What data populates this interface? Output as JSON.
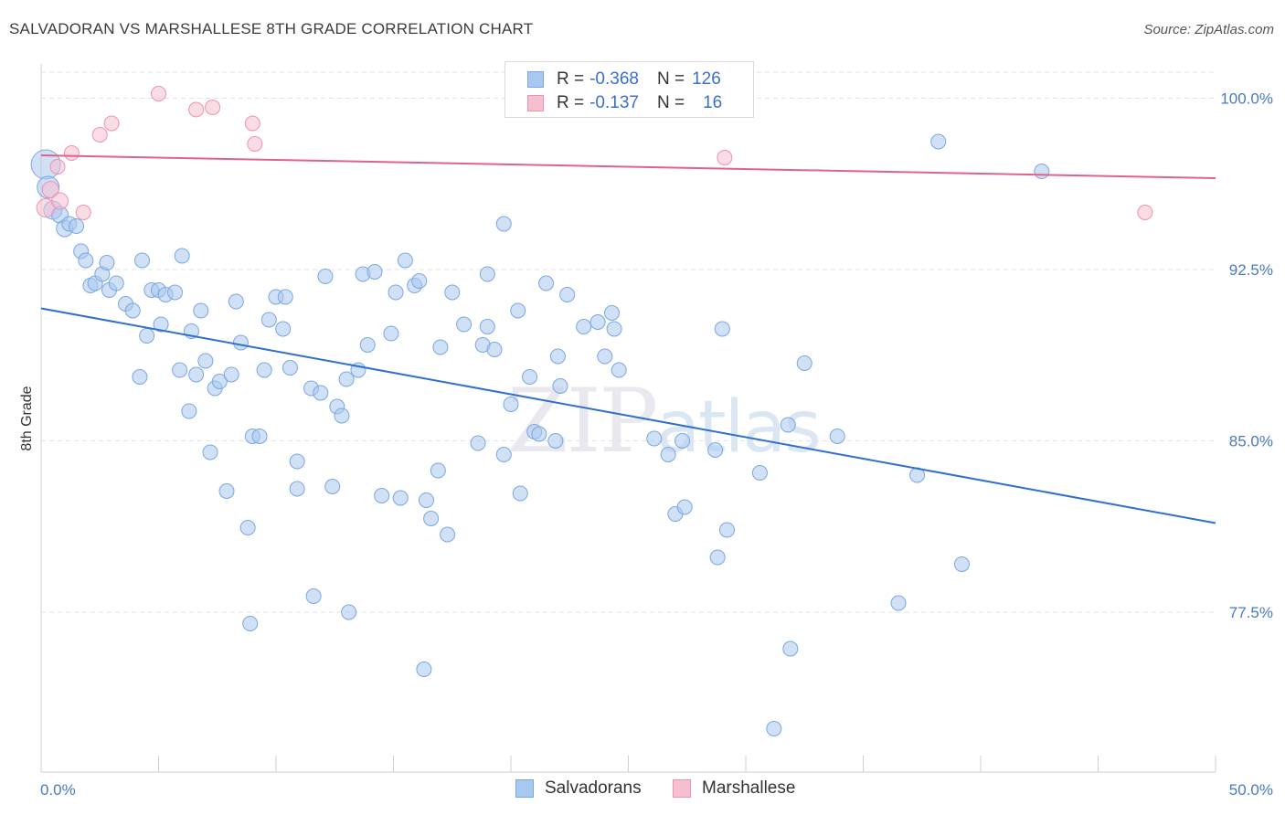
{
  "title": "SALVADORAN VS MARSHALLESE 8TH GRADE CORRELATION CHART",
  "source": "Source: ZipAtlas.com",
  "watermark": {
    "zip": "ZIP",
    "atlas": "atlas"
  },
  "colors": {
    "blue_fill": "#a9c8ef",
    "blue_stroke": "#7aa7e3",
    "blue_line": "#2f6fd0",
    "pink_fill": "#f6bfd0",
    "pink_stroke": "#ee92b0",
    "pink_line": "#e0628c",
    "grid": "#e3e3e3",
    "tick_text": "#4a78c8"
  },
  "legend": {
    "rows": [
      {
        "r_label": "R =",
        "r_value": "-0.368",
        "n_label": "N =",
        "n_value": "126"
      },
      {
        "r_label": "R =",
        "r_value": "-0.137",
        "n_label": "N =",
        "n_value": "16"
      }
    ]
  },
  "bottom_legend": {
    "salvadorans": "Salvadorans",
    "marshallese": "Marshallese"
  },
  "chart_data": {
    "type": "scatter",
    "title": "SALVADORAN VS MARSHALLESE 8TH GRADE CORRELATION CHART",
    "xlabel": "",
    "ylabel": "8th Grade",
    "xlim": [
      0,
      50
    ],
    "ylim": [
      70.5,
      101.5
    ],
    "x_tick_labels": [
      "0.0%",
      "50.0%"
    ],
    "y_ticks": [
      77.5,
      85.0,
      92.5,
      100.0
    ],
    "y_tick_labels": [
      "77.5%",
      "85.0%",
      "92.5%",
      "100.0%"
    ],
    "grid": true,
    "legend_position": "top-center",
    "series": [
      {
        "name": "Salvadorans",
        "trend": {
          "x": [
            0,
            50
          ],
          "y": [
            90.8,
            81.4
          ]
        },
        "points": [
          [
            0.2,
            97.1,
            16
          ],
          [
            0.3,
            96.1,
            12
          ],
          [
            0.5,
            95.1,
            10
          ],
          [
            0.8,
            94.9,
            9
          ],
          [
            1.0,
            94.3,
            9
          ],
          [
            1.2,
            94.5,
            8
          ],
          [
            1.5,
            94.4,
            8
          ],
          [
            1.7,
            93.3,
            8
          ],
          [
            1.9,
            92.9,
            8
          ],
          [
            2.1,
            91.8,
            8
          ],
          [
            2.3,
            91.9,
            8
          ],
          [
            2.6,
            92.3,
            8
          ],
          [
            2.8,
            92.8,
            8
          ],
          [
            2.9,
            91.6,
            8
          ],
          [
            3.2,
            91.9,
            8
          ],
          [
            3.6,
            91.0,
            8
          ],
          [
            3.9,
            90.7,
            8
          ],
          [
            4.2,
            87.8,
            8
          ],
          [
            4.3,
            92.9,
            8
          ],
          [
            4.5,
            89.6,
            8
          ],
          [
            4.7,
            91.6,
            8
          ],
          [
            5.0,
            91.6,
            8
          ],
          [
            5.1,
            90.1,
            8
          ],
          [
            5.3,
            91.4,
            8
          ],
          [
            5.7,
            91.5,
            8
          ],
          [
            5.9,
            88.1,
            8
          ],
          [
            6.0,
            93.1,
            8
          ],
          [
            6.3,
            86.3,
            8
          ],
          [
            6.4,
            89.8,
            8
          ],
          [
            6.6,
            87.9,
            8
          ],
          [
            6.8,
            90.7,
            8
          ],
          [
            7.0,
            88.5,
            8
          ],
          [
            7.2,
            84.5,
            8
          ],
          [
            7.4,
            87.3,
            8
          ],
          [
            7.6,
            87.6,
            8
          ],
          [
            7.9,
            82.8,
            8
          ],
          [
            8.1,
            87.9,
            8
          ],
          [
            8.3,
            91.1,
            8
          ],
          [
            8.5,
            89.3,
            8
          ],
          [
            8.8,
            81.2,
            8
          ],
          [
            9.0,
            85.2,
            8
          ],
          [
            9.3,
            85.2,
            8
          ],
          [
            9.5,
            88.1,
            8
          ],
          [
            9.7,
            90.3,
            8
          ],
          [
            10.0,
            91.3,
            8
          ],
          [
            10.3,
            89.9,
            8
          ],
          [
            10.4,
            91.3,
            8
          ],
          [
            10.6,
            88.2,
            8
          ],
          [
            10.9,
            84.1,
            8
          ],
          [
            10.9,
            82.9,
            8
          ],
          [
            11.5,
            87.3,
            8
          ],
          [
            11.6,
            78.2,
            8
          ],
          [
            11.9,
            87.1,
            8
          ],
          [
            12.1,
            92.2,
            8
          ],
          [
            12.4,
            83.0,
            8
          ],
          [
            12.6,
            86.5,
            8
          ],
          [
            12.8,
            86.1,
            8
          ],
          [
            13.0,
            87.7,
            8
          ],
          [
            13.1,
            77.5,
            8
          ],
          [
            13.5,
            88.1,
            8
          ],
          [
            13.7,
            92.3,
            8
          ],
          [
            13.9,
            89.2,
            8
          ],
          [
            14.2,
            92.4,
            8
          ],
          [
            14.5,
            82.6,
            8
          ],
          [
            14.9,
            89.7,
            8
          ],
          [
            15.1,
            91.5,
            8
          ],
          [
            15.3,
            82.5,
            8
          ],
          [
            15.5,
            92.9,
            8
          ],
          [
            15.9,
            91.8,
            8
          ],
          [
            16.1,
            92.0,
            8
          ],
          [
            16.3,
            75.0,
            8
          ],
          [
            16.4,
            82.4,
            8
          ],
          [
            16.6,
            81.6,
            8
          ],
          [
            16.9,
            83.7,
            8
          ],
          [
            17.0,
            89.1,
            8
          ],
          [
            17.3,
            80.9,
            8
          ],
          [
            17.5,
            91.5,
            8
          ],
          [
            18.0,
            90.1,
            8
          ],
          [
            18.6,
            84.9,
            8
          ],
          [
            18.8,
            89.2,
            8
          ],
          [
            19.0,
            90.0,
            8
          ],
          [
            19.0,
            92.3,
            8
          ],
          [
            19.3,
            89.0,
            8
          ],
          [
            19.7,
            84.4,
            8
          ],
          [
            19.7,
            94.5,
            8
          ],
          [
            20.0,
            86.6,
            8
          ],
          [
            20.3,
            90.7,
            8
          ],
          [
            20.4,
            82.7,
            8
          ],
          [
            20.8,
            87.8,
            8
          ],
          [
            21.0,
            85.4,
            8
          ],
          [
            21.2,
            85.3,
            8
          ],
          [
            21.5,
            91.9,
            8
          ],
          [
            21.9,
            85.0,
            8
          ],
          [
            22.0,
            88.7,
            8
          ],
          [
            22.1,
            87.4,
            8
          ],
          [
            22.4,
            91.4,
            8
          ],
          [
            23.1,
            90.0,
            8
          ],
          [
            23.7,
            90.2,
            8
          ],
          [
            24.0,
            88.7,
            8
          ],
          [
            24.3,
            90.6,
            8
          ],
          [
            24.4,
            89.9,
            8
          ],
          [
            24.6,
            88.1,
            8
          ],
          [
            26.1,
            85.1,
            8
          ],
          [
            26.7,
            84.4,
            8
          ],
          [
            27.0,
            81.8,
            8
          ],
          [
            27.3,
            85.0,
            8
          ],
          [
            27.4,
            82.1,
            8
          ],
          [
            28.7,
            84.6,
            8
          ],
          [
            28.8,
            79.9,
            8
          ],
          [
            29.0,
            89.9,
            8
          ],
          [
            29.2,
            81.1,
            8
          ],
          [
            30.6,
            83.6,
            8
          ],
          [
            31.8,
            85.7,
            8
          ],
          [
            31.9,
            75.9,
            8
          ],
          [
            31.2,
            72.4,
            8
          ],
          [
            32.5,
            88.4,
            8
          ],
          [
            33.9,
            85.2,
            8
          ],
          [
            36.5,
            77.9,
            8
          ],
          [
            37.3,
            83.5,
            8
          ],
          [
            38.2,
            98.1,
            8
          ],
          [
            39.2,
            79.6,
            8
          ],
          [
            42.6,
            96.8,
            8
          ],
          [
            8.9,
            77.0,
            8
          ]
        ]
      },
      {
        "name": "Marshallese",
        "trend": {
          "x": [
            0,
            50
          ],
          "y": [
            97.5,
            96.5
          ]
        },
        "points": [
          [
            0.2,
            95.2,
            10
          ],
          [
            0.4,
            96.0,
            9
          ],
          [
            0.7,
            97.0,
            8
          ],
          [
            0.8,
            95.5,
            9
          ],
          [
            1.3,
            97.6,
            8
          ],
          [
            1.8,
            95.0,
            8
          ],
          [
            2.5,
            98.4,
            8
          ],
          [
            3.0,
            98.9,
            8
          ],
          [
            5.0,
            100.2,
            8
          ],
          [
            6.6,
            99.5,
            8
          ],
          [
            7.3,
            99.6,
            8
          ],
          [
            9.0,
            98.9,
            8
          ],
          [
            9.1,
            98.0,
            8
          ],
          [
            27.0,
            100.0,
            8
          ],
          [
            29.1,
            97.4,
            8
          ],
          [
            47.0,
            95.0,
            8
          ]
        ]
      }
    ]
  }
}
